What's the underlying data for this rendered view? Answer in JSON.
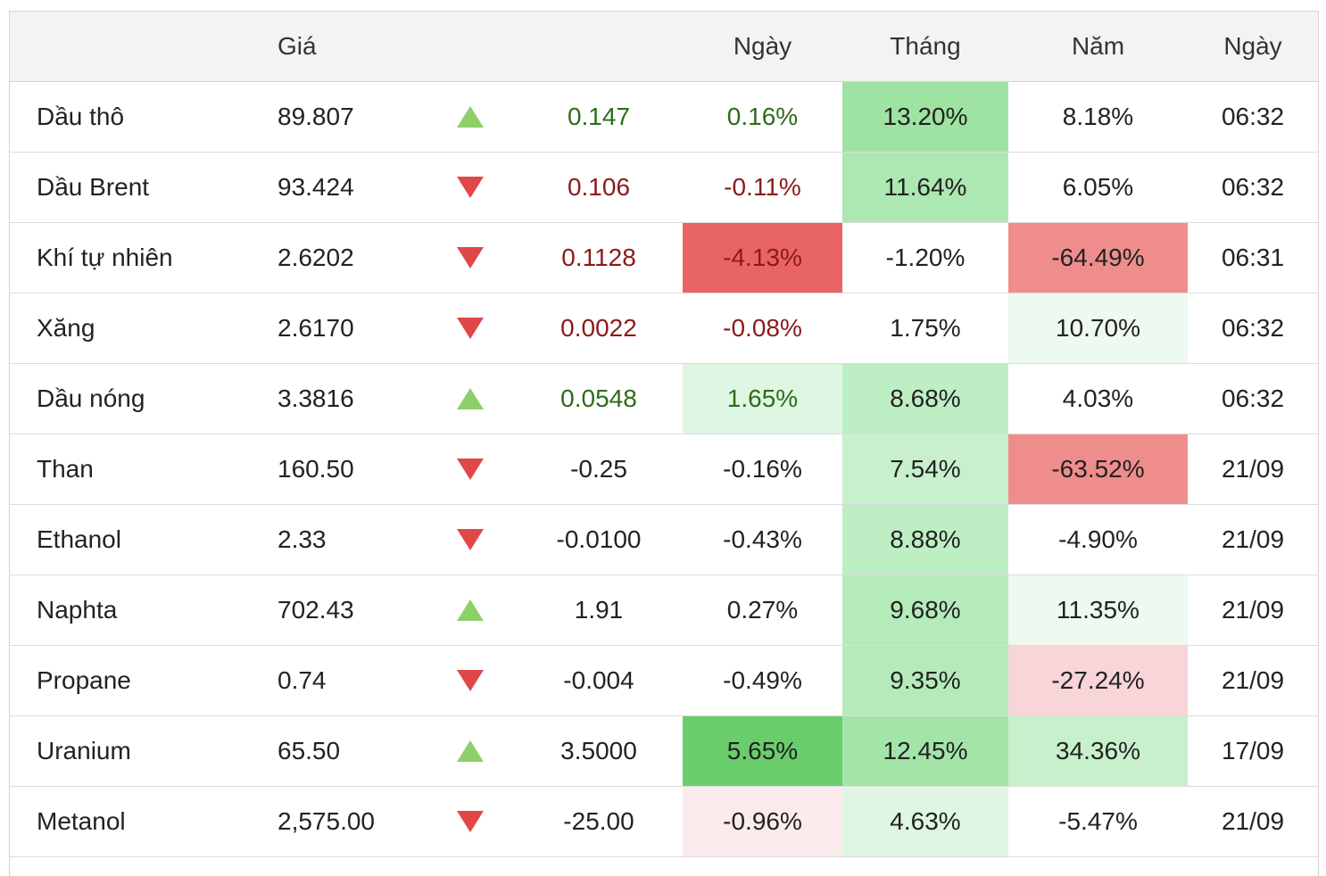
{
  "header": {
    "name": "",
    "price": "Giá",
    "change": "",
    "day": "Ngày",
    "month": "Tháng",
    "year": "Năm",
    "date": "Ngày"
  },
  "colors": {
    "green_strong": "#6acd6c",
    "green_mid": "#9ee3a2",
    "green_light": "#bdeec4",
    "green_pale": "#dff6e3",
    "green_faint": "#eef9ef",
    "red_strong": "#e96565",
    "red_mid": "#ef8d8d",
    "red_light": "#f8d5d8",
    "red_pale": "#fcebec",
    "up_text": "#2e6b1b",
    "down_text": "#8b1a1a",
    "up_arrow": "#8fcf6a",
    "down_arrow": "#e04848"
  },
  "rows": [
    {
      "name": "Dầu thô",
      "price": "89.807",
      "direction": "up",
      "change": "0.147",
      "day": "0.16%",
      "month": "13.20%",
      "year": "8.18%",
      "date": "06:32",
      "colored_text": true,
      "day_bg": "",
      "month_bg": "#9ee3a2",
      "year_bg": ""
    },
    {
      "name": "Dầu Brent",
      "price": "93.424",
      "direction": "down",
      "change": "0.106",
      "day": "-0.11%",
      "month": "11.64%",
      "year": "6.05%",
      "date": "06:32",
      "colored_text": true,
      "day_bg": "",
      "month_bg": "#ace8b1",
      "year_bg": ""
    },
    {
      "name": "Khí tự nhiên",
      "price": "2.6202",
      "direction": "down",
      "change": "0.1128",
      "day": "-4.13%",
      "month": "-1.20%",
      "year": "-64.49%",
      "date": "06:31",
      "colored_text": true,
      "day_bg": "#e96565",
      "month_bg": "",
      "year_bg": "#ef8d8d"
    },
    {
      "name": "Xăng",
      "price": "2.6170",
      "direction": "down",
      "change": "0.0022",
      "day": "-0.08%",
      "month": "1.75%",
      "year": "10.70%",
      "date": "06:32",
      "colored_text": true,
      "day_bg": "",
      "month_bg": "",
      "year_bg": "#eef9ef"
    },
    {
      "name": "Dầu nóng",
      "price": "3.3816",
      "direction": "up",
      "change": "0.0548",
      "day": "1.65%",
      "month": "8.68%",
      "year": "4.03%",
      "date": "06:32",
      "colored_text": true,
      "day_bg": "#dff6e3",
      "month_bg": "#bdeec4",
      "year_bg": ""
    },
    {
      "name": "Than",
      "price": "160.50",
      "direction": "down",
      "change": "-0.25",
      "day": "-0.16%",
      "month": "7.54%",
      "year": "-63.52%",
      "date": "21/09",
      "colored_text": false,
      "day_bg": "",
      "month_bg": "#c8f0cd",
      "year_bg": "#ef8d8d"
    },
    {
      "name": "Ethanol",
      "price": "2.33",
      "direction": "down",
      "change": "-0.0100",
      "day": "-0.43%",
      "month": "8.88%",
      "year": "-4.90%",
      "date": "21/09",
      "colored_text": false,
      "day_bg": "",
      "month_bg": "#bdeec4",
      "year_bg": ""
    },
    {
      "name": "Naphta",
      "price": "702.43",
      "direction": "up",
      "change": "1.91",
      "day": "0.27%",
      "month": "9.68%",
      "year": "11.35%",
      "date": "21/09",
      "colored_text": false,
      "day_bg": "",
      "month_bg": "#b5ebbb",
      "year_bg": "#eef9ef"
    },
    {
      "name": "Propane",
      "price": "0.74",
      "direction": "down",
      "change": "-0.004",
      "day": "-0.49%",
      "month": "9.35%",
      "year": "-27.24%",
      "date": "21/09",
      "colored_text": false,
      "day_bg": "",
      "month_bg": "#b5ebbb",
      "year_bg": "#f8d5d8"
    },
    {
      "name": "Uranium",
      "price": "65.50",
      "direction": "up",
      "change": "3.5000",
      "day": "5.65%",
      "month": "12.45%",
      "year": "34.36%",
      "date": "17/09",
      "colored_text": false,
      "day_bg": "#6acd6c",
      "month_bg": "#a3e5a8",
      "year_bg": "#c8f0cd"
    },
    {
      "name": "Metanol",
      "price": "2,575.00",
      "direction": "down",
      "change": "-25.00",
      "day": "-0.96%",
      "month": "4.63%",
      "year": "-5.47%",
      "date": "21/09",
      "colored_text": false,
      "day_bg": "#fcebec",
      "month_bg": "#dff6e3",
      "year_bg": ""
    }
  ]
}
